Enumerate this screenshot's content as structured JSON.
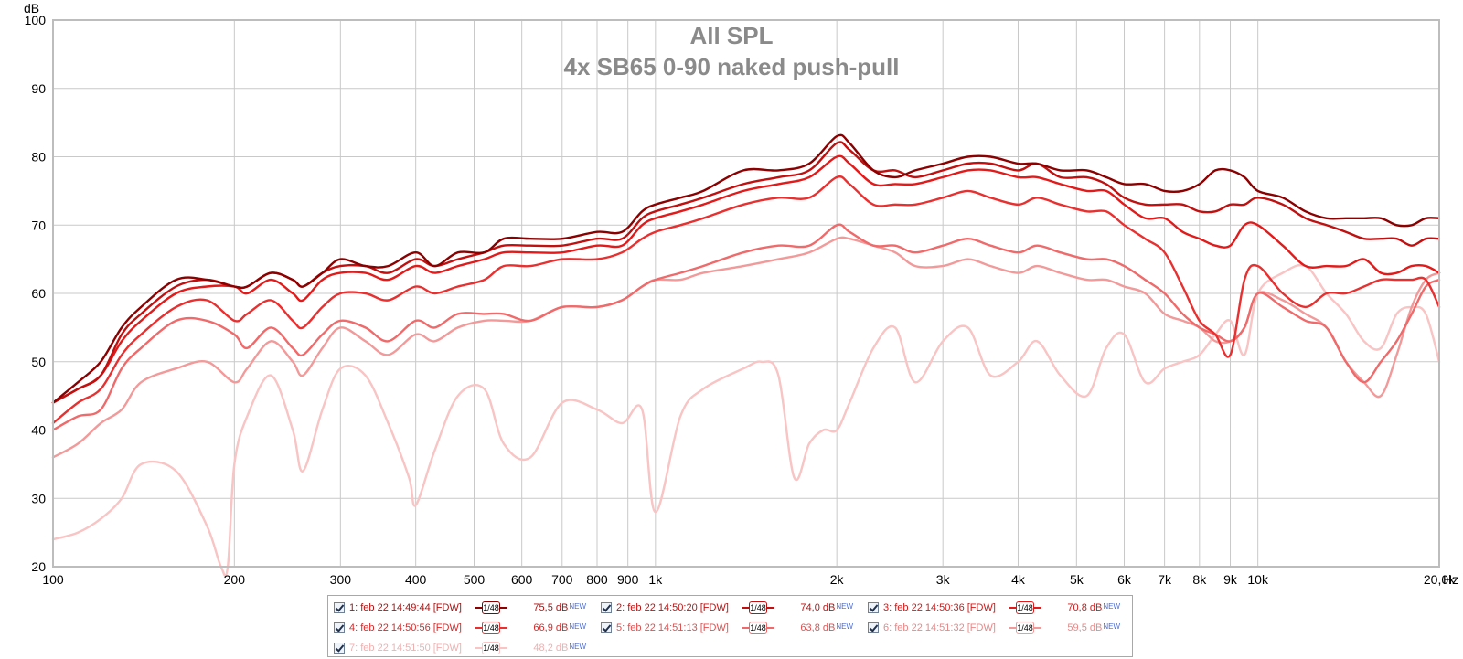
{
  "chart_data": {
    "type": "line",
    "title": "All SPL",
    "subtitle": "4x SB65 0-90 naked push-pull",
    "ylabel": "dB",
    "xunit": "Hz",
    "x_scale": "log",
    "xlim": [
      100,
      20000
    ],
    "ylim": [
      20,
      100
    ],
    "grid": true,
    "legend_position": "bottom",
    "y_ticks": [
      "20",
      "30",
      "40",
      "50",
      "60",
      "70",
      "80",
      "90",
      "100"
    ],
    "x_ticks": [
      {
        "value": 100,
        "label": "100"
      },
      {
        "value": 200,
        "label": "200"
      },
      {
        "value": 300,
        "label": "300"
      },
      {
        "value": 400,
        "label": "400"
      },
      {
        "value": 500,
        "label": "500"
      },
      {
        "value": 600,
        "label": "600"
      },
      {
        "value": 700,
        "label": "700"
      },
      {
        "value": 800,
        "label": "800"
      },
      {
        "value": 900,
        "label": "900"
      },
      {
        "value": 1000,
        "label": "1k"
      },
      {
        "value": 2000,
        "label": "2k"
      },
      {
        "value": 3000,
        "label": "3k"
      },
      {
        "value": 4000,
        "label": "4k"
      },
      {
        "value": 5000,
        "label": "5k"
      },
      {
        "value": 6000,
        "label": "6k"
      },
      {
        "value": 7000,
        "label": "7k"
      },
      {
        "value": 8000,
        "label": "8k"
      },
      {
        "value": 9000,
        "label": "9k"
      },
      {
        "value": 10000,
        "label": "10k"
      },
      {
        "value": 20000,
        "label": "20,0k"
      }
    ],
    "series": [
      {
        "name": "1: feb 22 14:49:44 [FDW]",
        "smoothing": "1/48",
        "level": "75,5 dB",
        "color": "#8b0000",
        "x": [
          100,
          110,
          120,
          130,
          140,
          160,
          180,
          200,
          210,
          230,
          250,
          260,
          280,
          300,
          330,
          360,
          400,
          430,
          470,
          520,
          560,
          620,
          700,
          800,
          880,
          950,
          1000,
          1100,
          1200,
          1400,
          1600,
          1800,
          2000,
          2100,
          2300,
          2500,
          2700,
          3000,
          3300,
          3600,
          4000,
          4300,
          4700,
          5200,
          5600,
          6000,
          6500,
          7000,
          7500,
          8000,
          8500,
          9000,
          9500,
          10000,
          11000,
          12000,
          13000,
          14000,
          15000,
          16000,
          17000,
          18000,
          19000,
          20000
        ],
        "y": [
          44,
          47,
          50,
          55,
          58,
          62,
          62,
          61,
          61,
          63,
          62,
          61,
          63,
          65,
          64,
          64,
          66,
          64,
          66,
          66,
          68,
          68,
          68,
          69,
          69,
          72,
          73,
          74,
          75,
          78,
          78,
          79,
          83,
          82,
          78,
          77,
          78,
          79,
          80,
          80,
          79,
          79,
          78,
          78,
          77,
          76,
          76,
          75,
          75,
          76,
          78,
          78,
          77,
          75,
          74,
          72,
          71,
          71,
          71,
          71,
          70,
          70,
          71,
          71
        ]
      },
      {
        "name": "2: feb 22 14:50:20 [FDW]",
        "smoothing": "1/48",
        "level": "74,0 dB",
        "color": "#c01010",
        "x": [
          100,
          110,
          120,
          130,
          140,
          160,
          180,
          200,
          210,
          230,
          250,
          260,
          280,
          300,
          330,
          360,
          400,
          430,
          470,
          520,
          560,
          620,
          700,
          800,
          880,
          950,
          1000,
          1100,
          1200,
          1400,
          1600,
          1800,
          2000,
          2100,
          2300,
          2500,
          2700,
          3000,
          3300,
          3600,
          4000,
          4300,
          4700,
          5200,
          5600,
          6000,
          6500,
          7000,
          7500,
          8000,
          8500,
          9000,
          9500,
          10000,
          11000,
          12000,
          13000,
          14000,
          15000,
          16000,
          17000,
          18000,
          19000,
          20000
        ],
        "y": [
          44,
          46,
          48,
          54,
          57,
          61,
          62,
          61,
          61,
          63,
          62,
          61,
          63,
          64,
          64,
          63,
          65,
          64,
          65,
          66,
          67,
          67,
          67,
          68,
          68,
          71,
          72,
          73,
          74,
          76,
          77,
          78,
          82,
          81,
          78,
          78,
          77,
          78,
          79,
          79,
          78,
          79,
          77,
          77,
          76,
          74,
          73,
          73,
          73,
          72,
          72,
          73,
          73,
          74,
          73,
          71,
          70,
          69,
          68,
          68,
          68,
          67,
          68,
          68
        ]
      },
      {
        "name": "3: feb 22 14:50:36 [FDW]",
        "smoothing": "1/48",
        "level": "70,8 dB",
        "color": "#e21a1a",
        "x": [
          100,
          110,
          120,
          130,
          140,
          160,
          180,
          200,
          210,
          230,
          250,
          260,
          280,
          300,
          330,
          360,
          400,
          430,
          470,
          520,
          560,
          620,
          700,
          800,
          880,
          950,
          1000,
          1100,
          1200,
          1400,
          1600,
          1800,
          2000,
          2100,
          2300,
          2500,
          2700,
          3000,
          3300,
          3600,
          4000,
          4300,
          4700,
          5200,
          5600,
          6000,
          6500,
          7000,
          7500,
          8000,
          8500,
          9000,
          9500,
          10000,
          11000,
          12000,
          13000,
          14000,
          15000,
          16000,
          17000,
          18000,
          19000,
          20000
        ],
        "y": [
          44,
          46,
          48,
          53,
          56,
          60,
          61,
          61,
          60,
          62,
          60,
          59,
          62,
          63,
          63,
          62,
          64,
          63,
          64,
          65,
          66,
          66,
          66,
          67,
          67,
          70,
          71,
          72,
          73,
          75,
          76,
          77,
          80,
          79,
          76,
          76,
          76,
          77,
          78,
          78,
          77,
          77,
          76,
          75,
          75,
          73,
          71,
          71,
          69,
          68,
          67,
          67,
          70,
          70,
          67,
          64,
          64,
          64,
          65,
          63,
          63,
          64,
          64,
          63
        ]
      },
      {
        "name": "4: feb 22 14:50:56 [FDW]",
        "smoothing": "1/48",
        "level": "66,9 dB",
        "color": "#e83030",
        "x": [
          100,
          110,
          120,
          130,
          140,
          160,
          180,
          200,
          210,
          230,
          250,
          260,
          280,
          300,
          330,
          360,
          400,
          430,
          470,
          520,
          560,
          620,
          700,
          800,
          880,
          950,
          1000,
          1100,
          1200,
          1400,
          1600,
          1800,
          2000,
          2100,
          2300,
          2500,
          2700,
          3000,
          3300,
          3600,
          4000,
          4300,
          4700,
          5200,
          5600,
          6000,
          6500,
          7000,
          7500,
          8000,
          8500,
          9000,
          9500,
          10000,
          11000,
          12000,
          13000,
          14000,
          15000,
          16000,
          17000,
          18000,
          19000,
          20000
        ],
        "y": [
          41,
          44,
          46,
          51,
          54,
          58,
          59,
          56,
          57,
          59,
          56,
          55,
          58,
          60,
          60,
          59,
          61,
          60,
          61,
          62,
          64,
          64,
          65,
          65,
          66,
          68,
          69,
          70,
          71,
          73,
          74,
          74,
          77,
          76,
          73,
          73,
          73,
          74,
          75,
          74,
          73,
          74,
          73,
          72,
          72,
          70,
          68,
          66,
          61,
          56,
          54,
          51,
          62,
          64,
          60,
          58,
          60,
          60,
          61,
          62,
          62,
          62,
          62,
          58
        ]
      },
      {
        "name": "5: feb 22 14:51:13 [FDW]",
        "smoothing": "1/48",
        "level": "63,8 dB",
        "color": "#ef6a6a",
        "x": [
          100,
          110,
          120,
          130,
          140,
          160,
          180,
          200,
          210,
          230,
          250,
          260,
          280,
          300,
          330,
          360,
          400,
          430,
          470,
          520,
          560,
          620,
          700,
          800,
          880,
          950,
          1000,
          1100,
          1200,
          1400,
          1600,
          1800,
          2000,
          2100,
          2300,
          2500,
          2700,
          3000,
          3300,
          3600,
          4000,
          4300,
          4700,
          5200,
          5600,
          6000,
          6500,
          7000,
          7500,
          8000,
          8500,
          9000,
          9500,
          10000,
          11000,
          12000,
          13000,
          14000,
          15000,
          16000,
          17000,
          18000,
          19000,
          20000
        ],
        "y": [
          40,
          42,
          43,
          49,
          52,
          56,
          56,
          54,
          52,
          55,
          52,
          51,
          54,
          56,
          55,
          53,
          56,
          55,
          57,
          57,
          57,
          56,
          58,
          58,
          59,
          61,
          62,
          63,
          64,
          66,
          67,
          67,
          70,
          69,
          67,
          67,
          66,
          67,
          68,
          67,
          66,
          67,
          66,
          65,
          65,
          64,
          62,
          60,
          57,
          55,
          54,
          53,
          55,
          60,
          58,
          56,
          55,
          50,
          47,
          50,
          53,
          57,
          61,
          62
        ]
      },
      {
        "name": "6: feb 22 14:51:32 [FDW]",
        "smoothing": "1/48",
        "level": "59,5 dB",
        "color": "#f29a9a",
        "x": [
          100,
          110,
          120,
          130,
          140,
          160,
          180,
          200,
          210,
          230,
          250,
          260,
          280,
          300,
          330,
          360,
          400,
          430,
          470,
          520,
          560,
          620,
          700,
          800,
          880,
          950,
          1000,
          1100,
          1200,
          1400,
          1600,
          1800,
          2000,
          2100,
          2300,
          2500,
          2700,
          3000,
          3300,
          3600,
          4000,
          4300,
          4700,
          5200,
          5600,
          6000,
          6500,
          7000,
          7500,
          8000,
          8500,
          9000,
          9500,
          10000,
          11000,
          12000,
          13000,
          14000,
          15000,
          16000,
          17000,
          18000,
          19000,
          20000
        ],
        "y": [
          36,
          38,
          41,
          43,
          47,
          49,
          50,
          47,
          49,
          53,
          50,
          48,
          52,
          55,
          53,
          51,
          54,
          53,
          55,
          56,
          56,
          56,
          58,
          58,
          59,
          61,
          62,
          62,
          63,
          64,
          65,
          66,
          68,
          68,
          67,
          66,
          64,
          64,
          65,
          64,
          63,
          64,
          63,
          62,
          62,
          61,
          60,
          57,
          56,
          55,
          53,
          53,
          55,
          60,
          59,
          57,
          55,
          50,
          47,
          45,
          51,
          58,
          62,
          63
        ]
      },
      {
        "name": "7: feb 22 14:51:50 [FDW]",
        "smoothing": "1/48",
        "level": "48,2 dB",
        "color": "#f8c4c4",
        "x": [
          100,
          110,
          120,
          130,
          140,
          160,
          180,
          190,
          195,
          200,
          210,
          230,
          250,
          260,
          280,
          300,
          330,
          360,
          390,
          400,
          430,
          470,
          520,
          560,
          620,
          700,
          800,
          880,
          950,
          1000,
          1100,
          1200,
          1400,
          1500,
          1600,
          1700,
          1800,
          1900,
          2000,
          2100,
          2300,
          2500,
          2700,
          3000,
          3300,
          3600,
          4000,
          4300,
          4700,
          5200,
          5600,
          6000,
          6500,
          7000,
          7500,
          8000,
          8500,
          9000,
          9500,
          10000,
          11000,
          12000,
          13000,
          14000,
          15000,
          16000,
          17000,
          18000,
          19000,
          20000
        ],
        "y": [
          24,
          25,
          27,
          30,
          35,
          34,
          26,
          20,
          20,
          35,
          42,
          48,
          40,
          34,
          43,
          49,
          48,
          41,
          33,
          29,
          37,
          45,
          46,
          38,
          36,
          44,
          43,
          41,
          43,
          28,
          42,
          46,
          49,
          50,
          48,
          33,
          38,
          40,
          40,
          44,
          52,
          55,
          47,
          53,
          55,
          48,
          50,
          53,
          48,
          45,
          52,
          54,
          47,
          49,
          50,
          51,
          54,
          56,
          51,
          60,
          63,
          64,
          60,
          57,
          53,
          52,
          57,
          58,
          57,
          50
        ]
      }
    ]
  },
  "legend": {
    "entries": [
      {
        "label": "1: feb 22 14:49:44 [FDW]",
        "smoothing": "1/48",
        "level": "75,5 dB",
        "badge": "NEW",
        "color": "#8b0000",
        "text_color": "#b01010"
      },
      {
        "label": "2: feb 22 14:50:20 [FDW]",
        "smoothing": "1/48",
        "level": "74,0 dB",
        "badge": "NEW",
        "color": "#c01010",
        "text_color": "#c01010"
      },
      {
        "label": "3: feb 22 14:50:36 [FDW]",
        "smoothing": "1/48",
        "level": "70,8 dB",
        "badge": "NEW",
        "color": "#e21a1a",
        "text_color": "#d01818"
      },
      {
        "label": "4: feb 22 14:50:56 [FDW]",
        "smoothing": "1/48",
        "level": "66,9 dB",
        "badge": "NEW",
        "color": "#e83030",
        "text_color": "#d82828"
      },
      {
        "label": "5: feb 22 14:51:13 [FDW]",
        "smoothing": "1/48",
        "level": "63,8 dB",
        "badge": "NEW",
        "color": "#ef6a6a",
        "text_color": "#e05050"
      },
      {
        "label": "6: feb 22 14:51:32 [FDW]",
        "smoothing": "1/48",
        "level": "59,5 dB",
        "badge": "NEW",
        "color": "#f29a9a",
        "text_color": "#e88888"
      },
      {
        "label": "7: feb 22 14:51:50 [FDW]",
        "smoothing": "1/48",
        "level": "48,2 dB",
        "badge": "NEW",
        "color": "#f8c4c4",
        "text_color": "#f0b0b0"
      }
    ]
  }
}
